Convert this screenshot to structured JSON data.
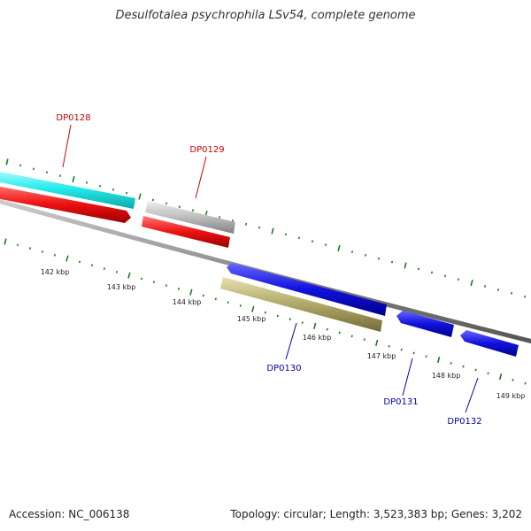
{
  "title": "Desulfotalea psychrophila LSv54, complete genome",
  "footer": {
    "accession": "Accession: NC_006138",
    "topology": "Topology: circular; Length: 3,523,383 bp; Genes: 3,202"
  },
  "colors": {
    "backbone": "#8a8a8a",
    "tick": "#1f7a1f",
    "label_red": "#cc0000",
    "label_blue": "#0000aa",
    "cyan_feature": "#22e8e8",
    "red_feature": "#ee1111",
    "gray_feature": "#bdbdbd",
    "blue_feature": "#1111dd",
    "olive_feature": "#b0a868"
  },
  "scale_labels": [
    "142 kbp",
    "143 kbp",
    "144 kbp",
    "145 kbp",
    "146 kbp",
    "147 kbp",
    "148 kbp",
    "149 kbp"
  ],
  "gene_labels": {
    "dp0128": "DP0128",
    "dp0129": "DP0129",
    "dp0130": "DP0130",
    "dp0131": "DP0131",
    "dp0132": "DP0132"
  }
}
